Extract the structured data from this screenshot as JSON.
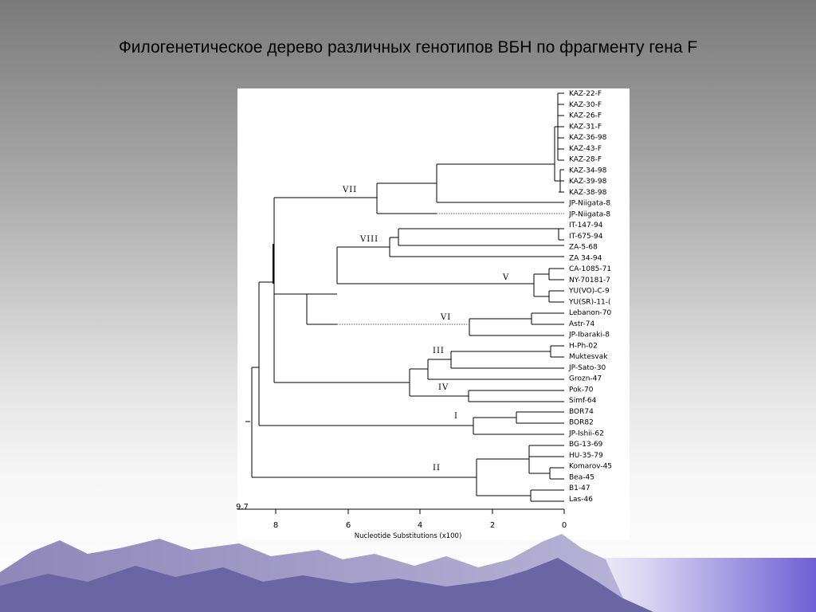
{
  "slide": {
    "title": "Филогенетическое дерево различных генотипов ВБН по фрагменту гена F"
  },
  "tree": {
    "leaves": [
      "KAZ-22-F",
      "KAZ-30-F",
      "KAZ-26-F",
      "KAZ-31-F",
      "KAZ-36-98",
      "KAZ-43-F",
      "KAZ-28-F",
      "KAZ-34-98",
      "KAZ-39-98",
      "KAZ-38-98",
      "JP-Niigata-8",
      "JP-Niigata-8",
      "IT-147-94",
      "IT-675-94",
      "ZA-5-68",
      "ZA 34-94",
      "CA-1085-71",
      "NY-70181-7",
      "YU(VO)-C-9",
      "YU(SR)-11-(",
      "Lebanon-70",
      "Astr-74",
      "JP-Ibaraki-8",
      "H-Ph-02",
      "Muktesvak",
      "JP-Sato-30",
      "Grozn-47",
      "Pok-70",
      "Simf-64",
      "BOR74",
      "BOR82",
      "JP-Ishii-62",
      "BG-13-69",
      "HU-35-79",
      "Komarov-45",
      "Bea-45",
      "B1-47",
      "Las-46"
    ],
    "clades": [
      "VII",
      "VIII",
      "V",
      "VI",
      "III",
      "IV",
      "I",
      "II"
    ],
    "root_value": "9.7"
  },
  "axis": {
    "ticks": [
      "8",
      "6",
      "4",
      "2",
      "0"
    ],
    "title": "Nucleotide Substitutions (x100)"
  }
}
